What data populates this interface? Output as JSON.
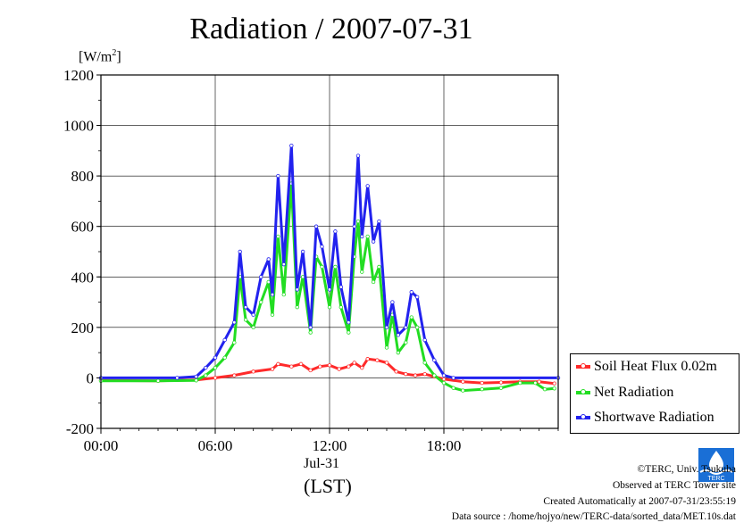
{
  "chart_data": {
    "type": "line",
    "title": "Radiation / 2007-07-31",
    "y_unit": "W/m",
    "y_unit_sup": "2",
    "ylim": [
      -200,
      1200
    ],
    "y_ticks": [
      "-200",
      "0",
      "200",
      "400",
      "600",
      "800",
      "1000",
      "1200"
    ],
    "xlim": [
      "00:00",
      "24:00"
    ],
    "x_ticks": [
      "00:00",
      "06:00",
      "12:00",
      "18:00"
    ],
    "x_date_label": "Jul-31",
    "x_unit_label": "(LST)",
    "grid": true,
    "legend_position": "right-bottom",
    "series": [
      {
        "name": "Soil Heat Flux 0.02m",
        "color": "#ff2a2a",
        "points": [
          [
            0.0,
            -10
          ],
          [
            3.0,
            -12
          ],
          [
            5.0,
            -8
          ],
          [
            6.0,
            0
          ],
          [
            7.0,
            10
          ],
          [
            8.0,
            25
          ],
          [
            9.0,
            35
          ],
          [
            9.3,
            55
          ],
          [
            10.0,
            45
          ],
          [
            10.5,
            55
          ],
          [
            11.0,
            30
          ],
          [
            11.5,
            45
          ],
          [
            12.0,
            50
          ],
          [
            12.5,
            35
          ],
          [
            13.0,
            45
          ],
          [
            13.3,
            60
          ],
          [
            13.7,
            40
          ],
          [
            14.0,
            75
          ],
          [
            14.5,
            70
          ],
          [
            15.0,
            60
          ],
          [
            15.5,
            25
          ],
          [
            16.0,
            15
          ],
          [
            16.5,
            10
          ],
          [
            17.0,
            15
          ],
          [
            17.5,
            5
          ],
          [
            18.0,
            -5
          ],
          [
            19.0,
            -15
          ],
          [
            20.0,
            -20
          ],
          [
            21.0,
            -18
          ],
          [
            22.0,
            -15
          ],
          [
            23.0,
            -15
          ],
          [
            23.8,
            -22
          ]
        ]
      },
      {
        "name": "Net Radiation",
        "color": "#22dd22",
        "points": [
          [
            0.0,
            -12
          ],
          [
            3.0,
            -12
          ],
          [
            5.0,
            -10
          ],
          [
            5.5,
            10
          ],
          [
            6.0,
            40
          ],
          [
            6.5,
            80
          ],
          [
            7.0,
            140
          ],
          [
            7.3,
            400
          ],
          [
            7.6,
            230
          ],
          [
            8.0,
            200
          ],
          [
            8.4,
            300
          ],
          [
            8.8,
            380
          ],
          [
            9.0,
            250
          ],
          [
            9.3,
            560
          ],
          [
            9.6,
            330
          ],
          [
            10.0,
            770
          ],
          [
            10.3,
            280
          ],
          [
            10.6,
            400
          ],
          [
            11.0,
            180
          ],
          [
            11.3,
            480
          ],
          [
            11.6,
            440
          ],
          [
            12.0,
            280
          ],
          [
            12.3,
            440
          ],
          [
            12.6,
            280
          ],
          [
            13.0,
            180
          ],
          [
            13.3,
            480
          ],
          [
            13.5,
            620
          ],
          [
            13.7,
            420
          ],
          [
            14.0,
            560
          ],
          [
            14.3,
            380
          ],
          [
            14.6,
            440
          ],
          [
            15.0,
            120
          ],
          [
            15.3,
            250
          ],
          [
            15.6,
            100
          ],
          [
            16.0,
            140
          ],
          [
            16.3,
            240
          ],
          [
            16.6,
            200
          ],
          [
            17.0,
            60
          ],
          [
            17.5,
            10
          ],
          [
            18.0,
            -20
          ],
          [
            18.5,
            -40
          ],
          [
            19.0,
            -50
          ],
          [
            20.0,
            -45
          ],
          [
            21.0,
            -40
          ],
          [
            22.0,
            -20
          ],
          [
            22.8,
            -20
          ],
          [
            23.3,
            -45
          ],
          [
            23.8,
            -42
          ]
        ]
      },
      {
        "name": "Shortwave Radiation",
        "color": "#2222ee",
        "points": [
          [
            0.0,
            0
          ],
          [
            4.0,
            0
          ],
          [
            5.0,
            5
          ],
          [
            5.5,
            40
          ],
          [
            6.0,
            80
          ],
          [
            6.5,
            150
          ],
          [
            7.0,
            220
          ],
          [
            7.3,
            500
          ],
          [
            7.6,
            280
          ],
          [
            8.0,
            250
          ],
          [
            8.4,
            400
          ],
          [
            8.8,
            470
          ],
          [
            9.0,
            330
          ],
          [
            9.3,
            800
          ],
          [
            9.6,
            450
          ],
          [
            10.0,
            920
          ],
          [
            10.3,
            350
          ],
          [
            10.6,
            500
          ],
          [
            11.0,
            200
          ],
          [
            11.3,
            600
          ],
          [
            11.6,
            520
          ],
          [
            12.0,
            350
          ],
          [
            12.3,
            580
          ],
          [
            12.6,
            360
          ],
          [
            13.0,
            220
          ],
          [
            13.3,
            600
          ],
          [
            13.5,
            880
          ],
          [
            13.7,
            560
          ],
          [
            14.0,
            760
          ],
          [
            14.3,
            540
          ],
          [
            14.6,
            620
          ],
          [
            15.0,
            200
          ],
          [
            15.3,
            300
          ],
          [
            15.6,
            170
          ],
          [
            16.0,
            200
          ],
          [
            16.3,
            340
          ],
          [
            16.6,
            320
          ],
          [
            17.0,
            150
          ],
          [
            17.5,
            70
          ],
          [
            18.0,
            10
          ],
          [
            18.5,
            0
          ],
          [
            24.0,
            0
          ]
        ]
      }
    ]
  },
  "footer": {
    "copyright": "©TERC, Univ. Tsukuba",
    "observed": "Observed at TERC Tower site",
    "created": "Created Automatically at 2007-07-31/23:55:19",
    "source": "Data source : /home/hojyo/new/TERC-data/sorted_data/MET.10s.dat"
  },
  "logo_text": "TERC"
}
